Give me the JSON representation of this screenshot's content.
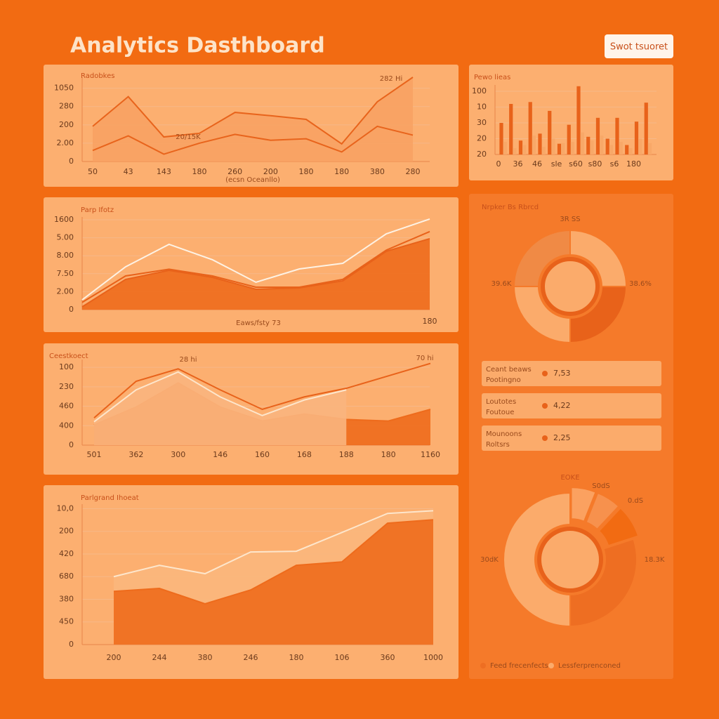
{
  "header": {
    "title": "Analytics Dasthboard",
    "button": "Swot tsuoret"
  },
  "chart_data": [
    {
      "type": "line",
      "title": "Radobkes",
      "x_label": "(ecsn Oceanllo)",
      "annotations": [
        "282 Hi",
        "20/15K"
      ],
      "categories": [
        "50",
        "43",
        "143",
        "180",
        "260",
        "200",
        "180",
        "180",
        "380",
        "280"
      ],
      "ylim": [
        0,
        1150
      ],
      "yticks": [
        0,
        {
          "value": 250,
          "label": "2.00"
        },
        {
          "value": 500,
          "label": "200"
        },
        {
          "value": 750,
          "label": "280"
        },
        {
          "value": 1000,
          "label": "1050"
        }
      ],
      "grid": true,
      "series": [
        {
          "color": "#e8641c",
          "fill": "#f8a263",
          "values": [
            480,
            885,
            335,
            385,
            670,
            625,
            575,
            240,
            815,
            1150
          ]
        },
        {
          "color": "#e8641c",
          "values": [
            150,
            350,
            100,
            250,
            370,
            290,
            310,
            130,
            480,
            360
          ]
        }
      ]
    },
    {
      "type": "bar",
      "title": "Pewo lieas",
      "categories": [
        "0",
        null,
        "36",
        null,
        "46",
        null,
        "sle",
        null,
        "s60",
        null,
        "s80",
        null,
        "s6",
        null,
        "180",
        null
      ],
      "ylim": [
        0,
        110
      ],
      "yticks": [
        {
          "value": 0,
          "label": "20"
        },
        {
          "value": 25,
          "label": "20"
        },
        {
          "value": 50,
          "label": "30"
        },
        {
          "value": 75,
          "label": "10"
        },
        100
      ],
      "grid": true,
      "series": [
        {
          "color": "#e8621a",
          "values": [
            50,
            80,
            22,
            83,
            33,
            69,
            17,
            47,
            108,
            28,
            58,
            25,
            58,
            15,
            52,
            82
          ]
        },
        {
          "color": "#f8a868",
          "values": [
            20,
            10,
            15,
            30,
            12,
            25,
            18,
            20,
            35,
            22,
            30,
            15,
            20,
            10,
            25,
            18
          ]
        }
      ]
    },
    {
      "type": "line",
      "title": "Parp Ifotz",
      "x_label": "Eaws/fsty 73",
      "categories": [
        null,
        null,
        null,
        null,
        null,
        null,
        null,
        null,
        "180"
      ],
      "ylim": [
        0,
        1650
      ],
      "yticks": [
        0,
        {
          "value": 320,
          "label": "2.00"
        },
        {
          "value": 640,
          "label": "7.50"
        },
        {
          "value": 960,
          "label": "8.00"
        },
        {
          "value": 1280,
          "label": "5.00"
        },
        1600
      ],
      "grid": true,
      "series": [
        {
          "color": "#e8621a",
          "fill": "#ee6b1c",
          "values": [
            50,
            538,
            700,
            575,
            363,
            388,
            513,
            1038,
            1263
          ]
        },
        {
          "color": "#e8621a",
          "values": [
            130,
            600,
            720,
            600,
            400,
            400,
            540,
            1060,
            1390
          ]
        },
        {
          "color": "#fdf2e4",
          "values": [
            175,
            763,
            1163,
            888,
            488,
            725,
            825,
            1350,
            1613
          ]
        }
      ]
    },
    {
      "type": "line",
      "title": "Ceestkoect",
      "annotations": [
        "28 hi",
        "70 hi"
      ],
      "categories": [
        "501",
        "362",
        "300",
        "146",
        "160",
        "168",
        "188",
        "180",
        "1160"
      ],
      "ylim": [
        0,
        1100
      ],
      "yticks": [
        0,
        {
          "value": 250,
          "label": "400"
        },
        {
          "value": 500,
          "label": "460"
        },
        {
          "value": 750,
          "label": "230"
        },
        {
          "value": 1000,
          "label": "100"
        }
      ],
      "grid": true,
      "series": [
        {
          "color": "#ee6b1c",
          "fill": "#ee6b1c",
          "values": [
            260,
            490,
            800,
            490,
            310,
            400,
            330,
            310,
            460
          ]
        },
        {
          "color": "#fde6cc",
          "fill": "#f9b57e",
          "values": [
            300,
            710,
            940,
            620,
            380,
            580,
            710,
            null,
            null
          ]
        },
        {
          "color": "#e8621a",
          "values": [
            350,
            820,
            980,
            710,
            460,
            620,
            730,
            890,
            1050
          ]
        }
      ]
    },
    {
      "type": "line",
      "title": "Parlgrand Ihoeat",
      "categories": [
        "200",
        "244",
        "380",
        "246",
        "180",
        "106",
        "360",
        "1000"
      ],
      "ylim": [
        0,
        620
      ],
      "yticks": [
        0,
        {
          "value": 100,
          "label": "450"
        },
        {
          "value": 200,
          "label": "380"
        },
        {
          "value": 300,
          "label": "680"
        },
        {
          "value": 400,
          "label": "420"
        },
        {
          "value": 500,
          "label": "200"
        },
        {
          "value": 600,
          "label": "10,0"
        }
      ],
      "grid": true,
      "series": [
        {
          "color": "#fde6cc",
          "fill": "#fbb77c",
          "values": [
            300,
            350,
            313,
            409,
            412,
            495,
            579,
            591
          ]
        },
        {
          "color": "#ee6b1c",
          "fill": "#ee6b1c",
          "values": [
            235,
            248,
            180,
            241,
            350,
            365,
            536,
            551
          ]
        }
      ]
    },
    {
      "type": "pie",
      "title": "Nrpker Bs Rbrcd",
      "annotations": [
        "3R SS",
        "39.6K",
        "38.6%"
      ],
      "values": [
        25,
        25,
        25,
        25
      ],
      "colors": [
        "#fbab6b",
        "#e8621a",
        "#fbab6b",
        "#f08a45"
      ]
    },
    {
      "type": "pie",
      "title": "EOKE",
      "annotations": [
        "S0dS",
        "0.dS",
        "30dK",
        "18.3K"
      ],
      "values": [
        6,
        6,
        8,
        30,
        50
      ],
      "colors": [
        "#fba160",
        "#f7914d",
        "#f26b12",
        "#ee6e22",
        "#fbab6b"
      ],
      "legend": [
        "Feed frecenfects",
        "Lessferprenconed"
      ]
    }
  ],
  "stats": [
    {
      "label": "Ceant beaws",
      "sublabel": "Pootingno",
      "value": "7,53"
    },
    {
      "label": "Loutotes",
      "sublabel": "Foutoue",
      "value": "4,22"
    },
    {
      "label": "Mounoons",
      "sublabel": "Roltsrs",
      "value": "2,25"
    }
  ]
}
